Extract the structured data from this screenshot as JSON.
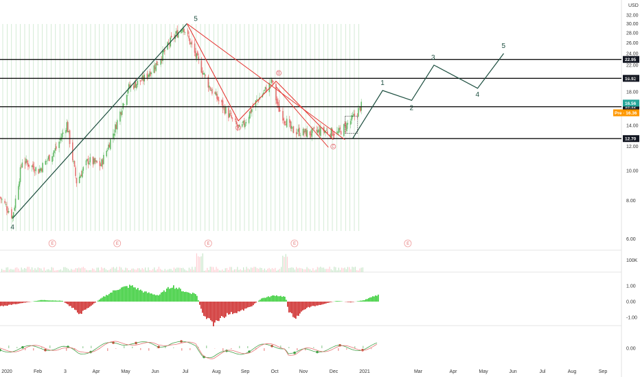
{
  "currency": "USD",
  "price_axis": {
    "ticks": [
      "32.00",
      "30.00",
      "28.00",
      "26.00",
      "24.00",
      "22.00",
      "20.00",
      "18.00",
      "16.00",
      "14.00",
      "12.00",
      "10.00",
      "8.00",
      "6.00"
    ],
    "scale": "log",
    "range": [
      5.6,
      34
    ]
  },
  "volume_axis": {
    "ticks": [
      "100K"
    ]
  },
  "oscillator_axis": {
    "ticks": [
      "1.00",
      "0.00",
      "-1.00"
    ]
  },
  "stoch_axis": {
    "ticks": [
      "0.00"
    ]
  },
  "time_axis": {
    "ticks": [
      "2020",
      "Feb",
      "3",
      "Apr",
      "May",
      "Jun",
      "Jul",
      "Aug",
      "Sep",
      "Oct",
      "Nov",
      "Dec",
      "2021",
      "Mar",
      "Apr",
      "May",
      "Jun",
      "Jul",
      "Aug",
      "Sep"
    ]
  },
  "levels": [
    {
      "label": "22.95",
      "value": 22.95
    },
    {
      "label": "19.92",
      "value": 19.92
    },
    {
      "label": "16.12",
      "value": 16.12
    },
    {
      "label": "12.70",
      "value": 12.7
    }
  ],
  "badges": {
    "last_price": "16.56",
    "pre_market": "Pre · 16.36"
  },
  "wave_labels": {
    "impulse_start": "4",
    "impulse_top": "5",
    "forecast": [
      "1",
      "2",
      "3",
      "4",
      "5"
    ],
    "corrective": [
      "A",
      "B",
      "C"
    ],
    "earnings": "E"
  },
  "colors": {
    "up": "#26a69a",
    "up_light": "#81c784",
    "down": "#ef5350",
    "impulse_line": "#1b4d3e",
    "correction_line": "#e53935",
    "level_line": "#111111",
    "last_price_badge": "#26a69a",
    "pre_badge": "#ff9800",
    "osc_up": "#33cc33",
    "osc_down": "#cc2222"
  },
  "chart_data": {
    "type": "candlestick",
    "price_scale": "log",
    "xlim": [
      "2020-01-01",
      "2021-09-30"
    ],
    "ylim": [
      5.6,
      34
    ],
    "horizontal_levels": [
      22.95,
      19.92,
      16.12,
      12.7
    ],
    "price_path": [
      {
        "date": "2020-01-01",
        "close": 8.2
      },
      {
        "date": "2020-01-14",
        "close": 7.1
      },
      {
        "date": "2020-01-24",
        "close": 10.8
      },
      {
        "date": "2020-02-10",
        "close": 10.0
      },
      {
        "date": "2020-02-28",
        "close": 11.8
      },
      {
        "date": "2020-03-10",
        "close": 14.2
      },
      {
        "date": "2020-03-20",
        "close": 9.2
      },
      {
        "date": "2020-04-01",
        "close": 10.8
      },
      {
        "date": "2020-04-14",
        "close": 10.4
      },
      {
        "date": "2020-04-28",
        "close": 13.5
      },
      {
        "date": "2020-05-12",
        "close": 18.5
      },
      {
        "date": "2020-05-28",
        "close": 19.8
      },
      {
        "date": "2020-06-12",
        "close": 22.5
      },
      {
        "date": "2020-06-26",
        "close": 26.5
      },
      {
        "date": "2020-07-08",
        "close": 29.5
      },
      {
        "date": "2020-07-20",
        "close": 24.0
      },
      {
        "date": "2020-08-05",
        "close": 18.5
      },
      {
        "date": "2020-08-22",
        "close": 15.5
      },
      {
        "date": "2020-09-05",
        "close": 13.5
      },
      {
        "date": "2020-09-20",
        "close": 16.5
      },
      {
        "date": "2020-10-08",
        "close": 19.5
      },
      {
        "date": "2020-10-14",
        "close": 16.0
      },
      {
        "date": "2020-10-28",
        "close": 13.5
      },
      {
        "date": "2020-11-15",
        "close": 13.2
      },
      {
        "date": "2020-11-30",
        "close": 13.5
      },
      {
        "date": "2020-12-15",
        "close": 13.2
      },
      {
        "date": "2020-12-28",
        "close": 14.5
      },
      {
        "date": "2021-01-10",
        "close": 16.5
      }
    ],
    "impulse_wave": [
      {
        "date": "2020-01-14",
        "value": 7.0,
        "label": "4"
      },
      {
        "date": "2020-07-12",
        "value": 30.0,
        "label": "5"
      }
    ],
    "corrective_wave": [
      {
        "date": "2020-07-12",
        "value": 30.0
      },
      {
        "date": "2020-09-03",
        "value": 14.5,
        "label": "A"
      },
      {
        "date": "2020-10-12",
        "value": 19.5,
        "label": "B"
      },
      {
        "date": "2020-12-10",
        "value": 12.6,
        "label": "C"
      }
    ],
    "projected_wave": [
      {
        "date": "2020-12-30",
        "value": 12.7
      },
      {
        "date": "2021-01-30",
        "value": 18.2,
        "label": "1"
      },
      {
        "date": "2021-03-01",
        "value": 16.9,
        "label": "2"
      },
      {
        "date": "2021-03-24",
        "value": 22.0,
        "label": "3"
      },
      {
        "date": "2021-05-08",
        "value": 18.5,
        "label": "4"
      },
      {
        "date": "2021-06-04",
        "value": 24.0,
        "label": "5"
      }
    ],
    "earnings_dates": [
      "2020-02-24",
      "2020-05-01",
      "2020-08-03",
      "2020-10-31",
      "2021-02-25"
    ]
  }
}
